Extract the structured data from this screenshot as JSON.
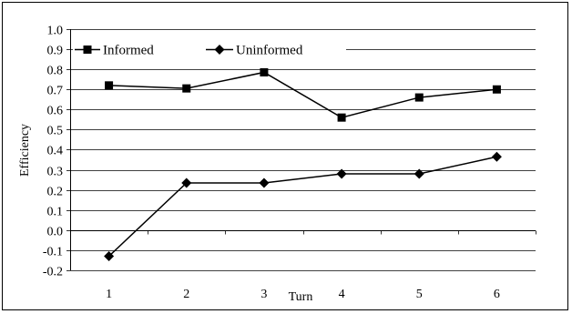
{
  "chart_data": {
    "type": "line",
    "title": "",
    "xlabel": "Turn",
    "ylabel": "Efficiency",
    "categories": [
      "1",
      "2",
      "3",
      "4",
      "5",
      "6"
    ],
    "ylim": [
      -0.2,
      1.0
    ],
    "yticks": [
      "1.0",
      "0.9",
      "0.8",
      "0.7",
      "0.6",
      "0.5",
      "0.4",
      "0.3",
      "0.2",
      "0.1",
      "0.0",
      "-0.1",
      "-0.2"
    ],
    "grid": true,
    "legend_position": "top-left",
    "series": [
      {
        "name": "Informed",
        "marker": "square",
        "color": "#000000",
        "values": [
          0.72,
          0.705,
          0.785,
          0.56,
          0.66,
          0.7
        ]
      },
      {
        "name": "Uninformed",
        "marker": "diamond",
        "color": "#000000",
        "values": [
          -0.13,
          0.235,
          0.235,
          0.28,
          0.28,
          0.365
        ]
      }
    ]
  }
}
